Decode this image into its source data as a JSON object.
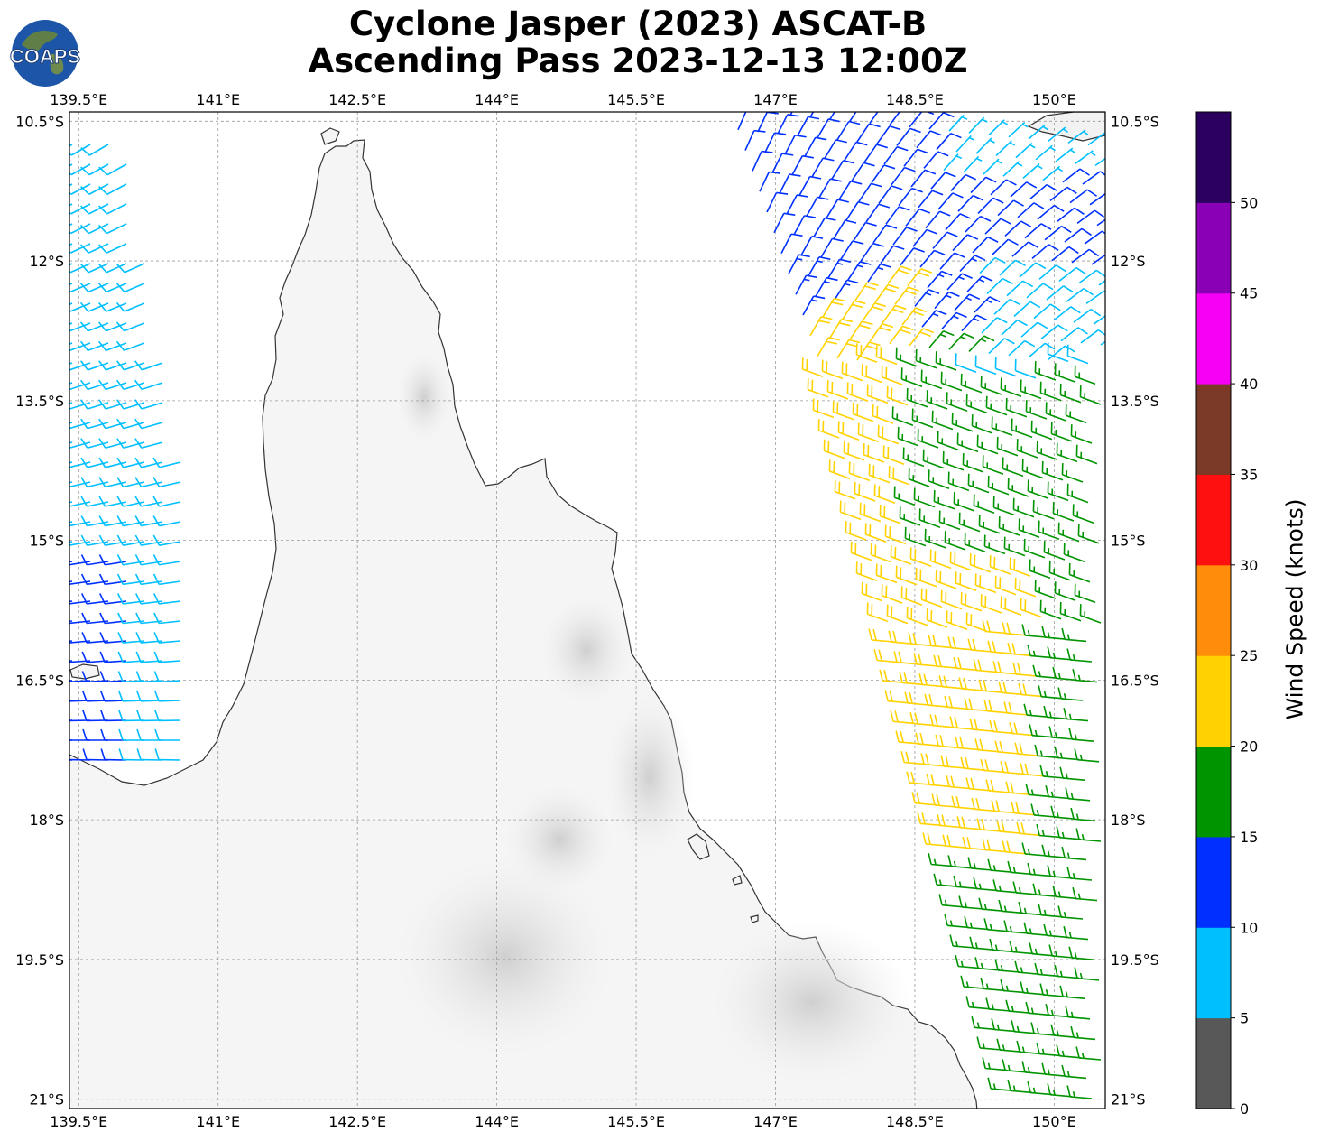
{
  "title": {
    "line1": "Cyclone Jasper (2023) ASCAT-B",
    "line2": "Ascending Pass 2023-12-13 12:00Z"
  },
  "logo": {
    "text": "COAPS"
  },
  "map": {
    "lon_labels": [
      "139.5°E",
      "141°E",
      "142.5°E",
      "144°E",
      "145.5°E",
      "147°E",
      "148.5°E",
      "150°E"
    ],
    "lon_values": [
      139.5,
      141,
      142.5,
      144,
      145.5,
      147,
      148.5,
      150
    ],
    "lat_labels": [
      "10.5°S",
      "12°S",
      "13.5°S",
      "15°S",
      "16.5°S",
      "18°S",
      "19.5°S",
      "21°S"
    ],
    "lat_values": [
      -10.5,
      -12,
      -13.5,
      -15,
      -16.5,
      -18,
      -19.5,
      -21
    ],
    "extent": {
      "lon": [
        139.4,
        150.55
      ],
      "lat": [
        -21.1,
        -10.4
      ]
    },
    "gridlines": true,
    "land_color": "#f4f4f4",
    "coast_color": "#333333"
  },
  "colorbar": {
    "label": "Wind Speed (knots)",
    "tick_labels": [
      "0",
      "5",
      "10",
      "15",
      "20",
      "25",
      "30",
      "35",
      "40",
      "45",
      "50"
    ],
    "bins": [
      {
        "from": 0,
        "to": 5,
        "color": "#585858"
      },
      {
        "from": 5,
        "to": 10,
        "color": "#00bfff"
      },
      {
        "from": 10,
        "to": 15,
        "color": "#0030ff"
      },
      {
        "from": 15,
        "to": 20,
        "color": "#009400"
      },
      {
        "from": 20,
        "to": 25,
        "color": "#ffd200"
      },
      {
        "from": 25,
        "to": 30,
        "color": "#ff8c0a"
      },
      {
        "from": 30,
        "to": 35,
        "color": "#ff1010"
      },
      {
        "from": 35,
        "to": 40,
        "color": "#7b3a28"
      },
      {
        "from": 40,
        "to": 45,
        "color": "#f500f5"
      },
      {
        "from": 45,
        "to": 50,
        "color": "#8a00b6"
      },
      {
        "from": 50,
        "to": 55,
        "color": "#2c005e"
      }
    ]
  }
}
